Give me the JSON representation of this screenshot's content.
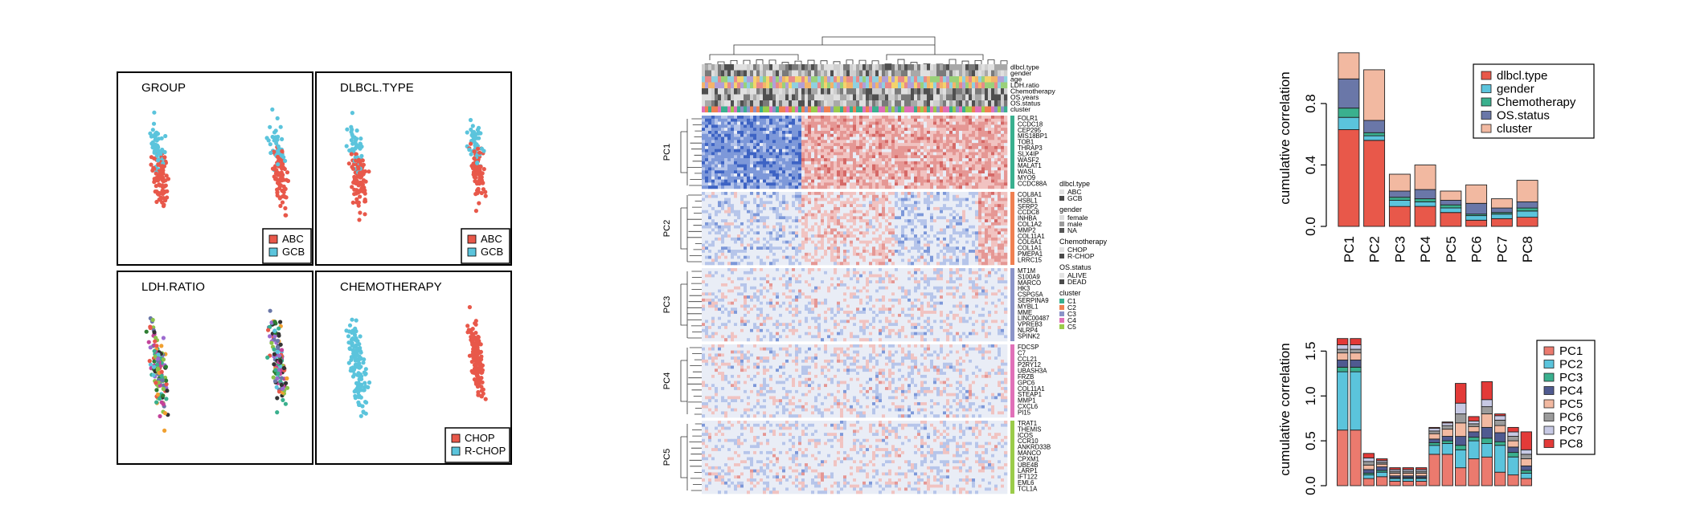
{
  "figure": {
    "palette": {
      "red": "#e8584a",
      "cyan": "#5bc4dc",
      "teal": "#3ab08e",
      "slate": "#6a77a8",
      "peach": "#f2b9a1",
      "salmon": "#eb7a6e",
      "lightblue": "#b6ddee",
      "mint": "#9ad5c2",
      "navy": "#4f5a90",
      "lavender": "#c7c9e4",
      "grey": "#9b9b9b",
      "crimson": "#e33a38",
      "heat_low": "#3e66c7",
      "heat_mid": "#eef1f7",
      "heat_high": "#d9716f"
    }
  },
  "scatter": {
    "panels": [
      {
        "title": "GROUP",
        "legend": [
          {
            "label": "ABC",
            "color": "#e8584a"
          },
          {
            "label": "GCB",
            "color": "#5bc4dc"
          }
        ]
      },
      {
        "title": "DLBCL.TYPE",
        "legend": [
          {
            "label": "ABC",
            "color": "#e8584a"
          },
          {
            "label": "GCB",
            "color": "#5bc4dc"
          }
        ]
      },
      {
        "title": "LDH.RATIO",
        "legend": []
      },
      {
        "title": "CHEMOTHERAPY",
        "legend": [
          {
            "label": "CHOP",
            "color": "#e8584a"
          },
          {
            "label": "R-CHOP",
            "color": "#5bc4dc"
          }
        ]
      }
    ]
  },
  "heatmap": {
    "annotation_tracks": [
      "dlbcl.type",
      "gender",
      "age",
      "LDH.ratio",
      "Chemotherapy",
      "OS.years",
      "OS.status",
      "cluster"
    ],
    "blocks": [
      {
        "label": "PC1",
        "color": "#39b08f",
        "genes": [
          "FOLR1",
          "CCDC18",
          "CEP295",
          "MIS18BP1",
          "TOB1",
          "THRAP3",
          "SLX4IP",
          "WASF2",
          "MALAT1",
          "WASL",
          "MYO9",
          "CCDC88A"
        ]
      },
      {
        "label": "PC2",
        "color": "#f08052",
        "genes": [
          "COL8A1",
          "HSBL1",
          "SFRP2",
          "CCDC8",
          "INHBA",
          "COL1A2",
          "MMP2",
          "COL11A1",
          "COL6A1",
          "COL1A1",
          "PMEPA1",
          "LRRC15"
        ]
      },
      {
        "label": "PC3",
        "color": "#8b93c8",
        "genes": [
          "MT1M",
          "S100A9",
          "MARCO",
          "HK3",
          "CSPG5A",
          "SERPINA9",
          "MYBL1",
          "MME",
          "LINC00487",
          "VPREB3",
          "NLRP4",
          "SPINK2"
        ]
      },
      {
        "label": "PC4",
        "color": "#e070b8",
        "genes": [
          "FDCSP",
          "C7",
          "CCL21",
          "P2RY12",
          "UBASH3A",
          "FRZB",
          "GPC6",
          "COL11A1",
          "STEAP1",
          "MMP1",
          "CXCL6",
          "PI15"
        ]
      },
      {
        "label": "PC5",
        "color": "#9bcc4a",
        "genes": [
          "TRAT1",
          "THEMIS",
          "ICOS",
          "CCR10",
          "ANKRD33B",
          "MANCO",
          "CPXM1",
          "UBE4B",
          "LARP1",
          "IFT122",
          "EML6",
          "TCL1A"
        ]
      }
    ],
    "legend_groups": [
      {
        "title": "dlbcl.type",
        "items": [
          {
            "label": "ABC",
            "color": "#e3e3e3"
          },
          {
            "label": "GCB",
            "color": "#4a4a4a"
          }
        ]
      },
      {
        "title": "gender",
        "items": [
          {
            "label": "female",
            "color": "#dddddd"
          },
          {
            "label": "male",
            "color": "#9a9a9a"
          },
          {
            "label": "NA",
            "color": "#555555"
          }
        ]
      },
      {
        "title": "Chemotherapy",
        "items": [
          {
            "label": "CHOP",
            "color": "#e3e3e3"
          },
          {
            "label": "R-CHOP",
            "color": "#4a4a4a"
          }
        ]
      },
      {
        "title": "OS.status",
        "items": [
          {
            "label": "ALIVE",
            "color": "#e3e3e3"
          },
          {
            "label": "DEAD",
            "color": "#4a4a4a"
          }
        ]
      },
      {
        "title": "cluster",
        "items": [
          {
            "label": "C1",
            "color": "#39b08f"
          },
          {
            "label": "C2",
            "color": "#f08052"
          },
          {
            "label": "C3",
            "color": "#8b93c8"
          },
          {
            "label": "C4",
            "color": "#e070b8"
          },
          {
            "label": "C5",
            "color": "#9bcc4a"
          }
        ]
      }
    ]
  },
  "chart_data": [
    {
      "type": "bar",
      "stacked": true,
      "ylabel": "cumulative correlation",
      "ylim": [
        0,
        1.15
      ],
      "yticks": [
        0.0,
        0.4,
        0.8
      ],
      "legend_position": "top-right",
      "categories": [
        "PC1",
        "PC2",
        "PC3",
        "PC4",
        "PC5",
        "PC6",
        "PC7",
        "PC8"
      ],
      "series": [
        {
          "name": "dlbcl.type",
          "color": "#e8584a",
          "values": [
            0.63,
            0.56,
            0.13,
            0.13,
            0.09,
            0.04,
            0.05,
            0.06
          ]
        },
        {
          "name": "gender",
          "color": "#5bc4dc",
          "values": [
            0.08,
            0.03,
            0.04,
            0.03,
            0.03,
            0.03,
            0.03,
            0.04
          ]
        },
        {
          "name": "Chemotherapy",
          "color": "#3ab08e",
          "values": [
            0.06,
            0.02,
            0.02,
            0.02,
            0.02,
            0.01,
            0.01,
            0.02
          ]
        },
        {
          "name": "OS.status",
          "color": "#6a77a8",
          "values": [
            0.19,
            0.08,
            0.04,
            0.06,
            0.03,
            0.07,
            0.03,
            0.04
          ]
        },
        {
          "name": "cluster",
          "color": "#f2b9a1",
          "values": [
            0.17,
            0.33,
            0.11,
            0.16,
            0.06,
            0.12,
            0.06,
            0.14
          ]
        }
      ]
    },
    {
      "type": "bar",
      "stacked": true,
      "ylabel": "cumulative correlation",
      "ylim": [
        0,
        1.7
      ],
      "yticks": [
        0.0,
        0.5,
        1.0,
        1.5
      ],
      "legend_position": "right",
      "categories": [
        "",
        "",
        "",
        "",
        "",
        "",
        "",
        "",
        "",
        "",
        "",
        "",
        "",
        "",
        ""
      ],
      "series": [
        {
          "name": "PC1",
          "color": "#eb7a6e",
          "values": [
            0.62,
            0.62,
            0.08,
            0.1,
            0.05,
            0.05,
            0.05,
            0.35,
            0.35,
            0.2,
            0.3,
            0.32,
            0.15,
            0.12,
            0.08
          ]
        },
        {
          "name": "PC2",
          "color": "#5bc4dc",
          "values": [
            0.65,
            0.65,
            0.04,
            0.05,
            0.03,
            0.03,
            0.03,
            0.1,
            0.12,
            0.2,
            0.2,
            0.15,
            0.3,
            0.2,
            0.06
          ]
        },
        {
          "name": "PC3",
          "color": "#3ab08e",
          "values": [
            0.05,
            0.05,
            0.02,
            0.02,
            0.01,
            0.01,
            0.01,
            0.03,
            0.03,
            0.05,
            0.04,
            0.06,
            0.04,
            0.05,
            0.03
          ]
        },
        {
          "name": "PC4",
          "color": "#4f5a90",
          "values": [
            0.08,
            0.08,
            0.04,
            0.04,
            0.02,
            0.02,
            0.02,
            0.04,
            0.05,
            0.1,
            0.06,
            0.12,
            0.1,
            0.06,
            0.05
          ]
        },
        {
          "name": "PC5",
          "color": "#f2b9a1",
          "values": [
            0.08,
            0.08,
            0.05,
            0.03,
            0.03,
            0.03,
            0.03,
            0.06,
            0.08,
            0.15,
            0.06,
            0.15,
            0.08,
            0.07,
            0.08
          ]
        },
        {
          "name": "PC6",
          "color": "#9b9b9b",
          "values": [
            0.04,
            0.04,
            0.04,
            0.02,
            0.02,
            0.02,
            0.02,
            0.03,
            0.04,
            0.1,
            0.03,
            0.08,
            0.06,
            0.05,
            0.05
          ]
        },
        {
          "name": "PC7",
          "color": "#c7c9e4",
          "values": [
            0.05,
            0.05,
            0.04,
            0.02,
            0.02,
            0.02,
            0.02,
            0.03,
            0.03,
            0.12,
            0.03,
            0.08,
            0.05,
            0.05,
            0.05
          ]
        },
        {
          "name": "PC8",
          "color": "#e33a38",
          "values": [
            0.07,
            0.07,
            0.05,
            0.02,
            0.02,
            0.02,
            0.02,
            0.01,
            0.01,
            0.22,
            0.05,
            0.2,
            0.02,
            0.05,
            0.2
          ]
        }
      ]
    }
  ]
}
